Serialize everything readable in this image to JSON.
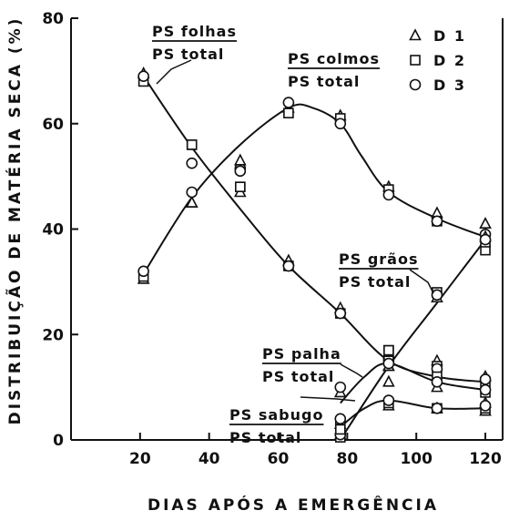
{
  "chart_data": {
    "type": "scatter",
    "xlabel": "DIAS APÓS A EMERGÊNCIA",
    "ylabel": "DISTRIBUIÇÃO DE MATÉRIA SECA (%)",
    "xlim": [
      0,
      125
    ],
    "ylim": [
      0,
      80
    ],
    "xticks": [
      20,
      40,
      60,
      80,
      100,
      120
    ],
    "yticks": [
      0,
      20,
      40,
      60,
      80
    ],
    "grid": false,
    "legend_position": "top-right",
    "legend": [
      {
        "label": "D 1",
        "marker": "triangle"
      },
      {
        "label": "D 2",
        "marker": "square"
      },
      {
        "label": "D 3",
        "marker": "circle"
      }
    ],
    "series": [
      {
        "annotation": {
          "numerator": "PS folhas",
          "denominator": "PS total"
        },
        "x": [
          21,
          35,
          49,
          63,
          78,
          92,
          106,
          120
        ],
        "D1": [
          69.5,
          45,
          47,
          34,
          25,
          14,
          15,
          12
        ],
        "D2": [
          68,
          56,
          48,
          33,
          24,
          17,
          14,
          11
        ],
        "D3": [
          69,
          52.5,
          51.5,
          33,
          24,
          15.5,
          13.5,
          11.5
        ],
        "curve": [
          [
            21,
            69
          ],
          [
            35,
            55.5
          ],
          [
            50,
            43
          ],
          [
            63,
            33
          ],
          [
            78,
            24
          ],
          [
            92,
            15
          ],
          [
            106,
            12
          ],
          [
            120,
            11
          ]
        ]
      },
      {
        "annotation": {
          "numerator": "PS colmos",
          "denominator": "PS total"
        },
        "x": [
          21,
          35,
          49,
          63,
          78,
          92,
          106,
          120
        ],
        "D1": [
          30.5,
          45,
          53,
          63,
          61.5,
          48,
          43,
          41
        ],
        "D2": [
          31,
          56,
          48,
          62,
          61,
          47.5,
          41.5,
          36
        ],
        "D3": [
          32,
          47,
          51,
          64,
          60,
          46.5,
          41.5,
          39
        ],
        "curve": [
          [
            21,
            31.5
          ],
          [
            35,
            46
          ],
          [
            49,
            56
          ],
          [
            63,
            63
          ],
          [
            70,
            63
          ],
          [
            78,
            60
          ],
          [
            84,
            54
          ],
          [
            92,
            47
          ],
          [
            106,
            42
          ],
          [
            120,
            38.5
          ]
        ]
      },
      {
        "annotation": {
          "numerator": "PS grãos",
          "denominator": "PS total"
        },
        "x": [
          78,
          92,
          106,
          120
        ],
        "D1": [
          1,
          14,
          27,
          38.5
        ],
        "D2": [
          0.5,
          17,
          28,
          37.5
        ],
        "D3": [
          1,
          15,
          27.5,
          38
        ],
        "curve": [
          [
            78,
            0
          ],
          [
            92,
            14
          ],
          [
            106,
            26
          ],
          [
            120,
            38
          ]
        ]
      },
      {
        "annotation": {
          "numerator": "PS palha",
          "denominator": "PS total"
        },
        "x": [
          78,
          92,
          106,
          120
        ],
        "D1": [
          9,
          11,
          10,
          7
        ],
        "D2": [
          3.5,
          15,
          12,
          9
        ],
        "D3": [
          10,
          14.5,
          11,
          9.5
        ],
        "curve": [
          [
            78,
            7
          ],
          [
            85,
            12
          ],
          [
            92,
            14.5
          ],
          [
            106,
            11
          ],
          [
            120,
            9.5
          ]
        ]
      },
      {
        "annotation": {
          "numerator": "PS sabugo",
          "denominator": "PS total"
        },
        "x": [
          78,
          92,
          106,
          120
        ],
        "D1": [
          3,
          6.5,
          6,
          5.5
        ],
        "D2": [
          2,
          7,
          6,
          6
        ],
        "D3": [
          4,
          7.5,
          6,
          6.5
        ],
        "curve": [
          [
            78,
            2.5
          ],
          [
            85,
            6
          ],
          [
            92,
            7.5
          ],
          [
            106,
            6
          ],
          [
            120,
            6
          ]
        ]
      }
    ]
  }
}
